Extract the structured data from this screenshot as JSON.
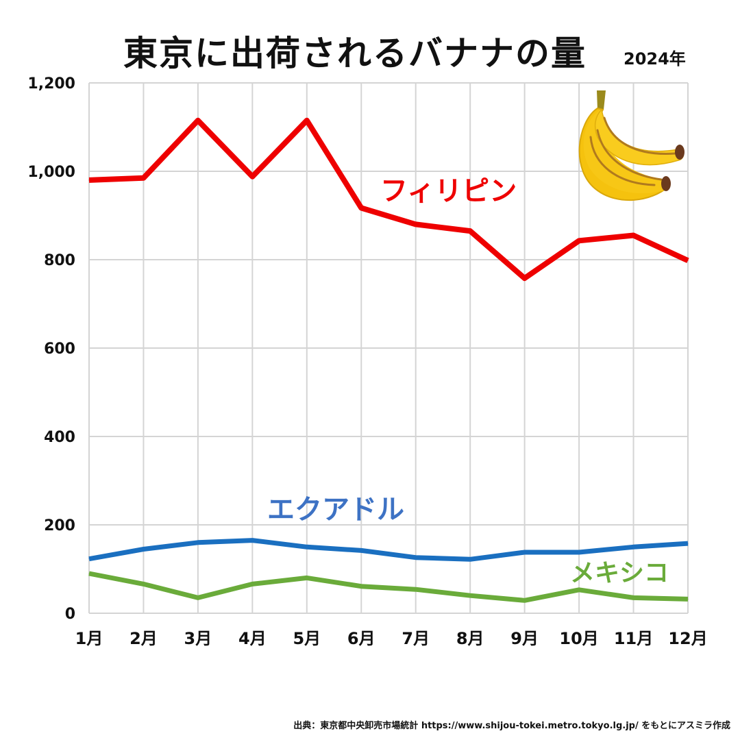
{
  "colors": {
    "philippines": "#ee0000",
    "ecuador": "#1a6fc0",
    "mexico": "#6aab3a",
    "ecuador_label": "#3d72c4",
    "grid": "#d4d4d4",
    "banana_fill": "#f5c20e",
    "banana_stripe": "#b07a1e",
    "banana_stem": "#9a8a1c",
    "banana_tip": "#6b3a1e"
  },
  "chart_data": {
    "type": "line",
    "title": "東京に出荷されるバナナの量",
    "subtitle": "2024年",
    "xlabel": "",
    "ylabel": "",
    "categories": [
      "1月",
      "2月",
      "3月",
      "4月",
      "5月",
      "6月",
      "7月",
      "8月",
      "9月",
      "10月",
      "11月",
      "12月"
    ],
    "y_ticks": [
      "0",
      "200",
      "400",
      "600",
      "800",
      "1,000",
      "1,200"
    ],
    "ylim": [
      0,
      1200
    ],
    "grid": true,
    "legend": "direct labels",
    "series": [
      {
        "name": "フィリピン",
        "color": "#ee0000",
        "values": [
          980,
          985,
          1115,
          988,
          1115,
          917,
          880,
          865,
          758,
          843,
          855,
          798
        ]
      },
      {
        "name": "エクアドル",
        "color": "#1a6fc0",
        "values": [
          123,
          145,
          160,
          165,
          150,
          142,
          126,
          122,
          138,
          138,
          150,
          158
        ]
      },
      {
        "name": "メキシコ",
        "color": "#6aab3a",
        "values": [
          90,
          66,
          35,
          66,
          80,
          61,
          54,
          40,
          29,
          53,
          35,
          32
        ]
      }
    ]
  },
  "source": "出典：東京都中央卸売市場統計 https://www.shijou-tokei.metro.tokyo.lg.jp/ をもとにアスミラ作成"
}
